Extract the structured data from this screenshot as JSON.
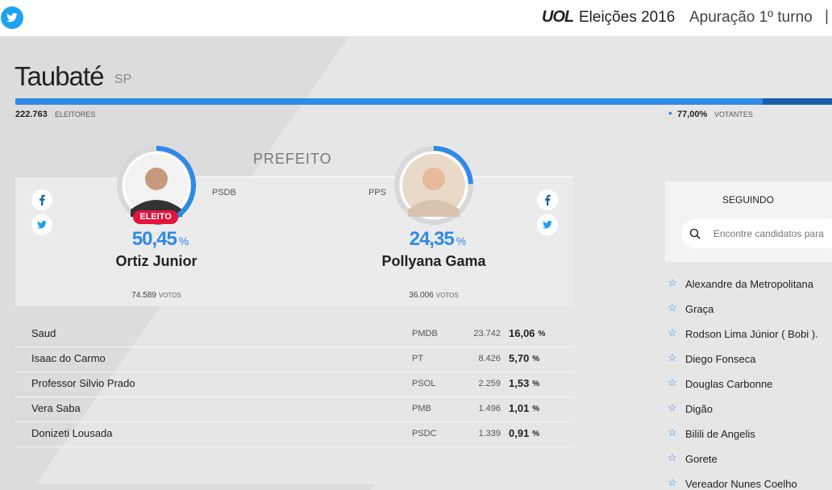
{
  "header": {
    "brand": "UOL",
    "title": "Eleições 2016",
    "subtitle": "Apuração 1º turno",
    "separator": "|"
  },
  "city": {
    "name": "Taubaté",
    "state": "SP",
    "electors": "222.763",
    "electors_label": "ELEITORES",
    "turnout": {
      "value": 77.0,
      "label": "77,00%"
    },
    "turnout_label": "VOTANTES"
  },
  "race": {
    "office": "PREFEITO",
    "unit": "%",
    "votes_label": "VOTOS",
    "elected_badge": "ELEITO",
    "leaders": [
      {
        "name": "Ortiz Junior",
        "party": "PSDB",
        "share": {
          "value": 50.45,
          "label": "50,45"
        },
        "votes": "74.589",
        "elected": true
      },
      {
        "name": "Pollyana Gama",
        "party": "PPS",
        "share": {
          "value": 24.35,
          "label": "24,35"
        },
        "votes": "36.006",
        "elected": false
      }
    ],
    "others": [
      {
        "name": "Saud",
        "party": "PMDB",
        "votes": "23.742",
        "share": "16,06"
      },
      {
        "name": "Isaac do Carmo",
        "party": "PT",
        "votes": "8.426",
        "share": "5,70"
      },
      {
        "name": "Professor Silvio Prado",
        "party": "PSOL",
        "votes": "2.259",
        "share": "1,53"
      },
      {
        "name": "Vera Saba",
        "party": "PMB",
        "votes": "1.496",
        "share": "1,01"
      },
      {
        "name": "Donizeti Lousada",
        "party": "PSDC",
        "votes": "1.339",
        "share": "0,91"
      }
    ]
  },
  "sidebar": {
    "title": "SEGUINDO",
    "search_placeholder": "Encontre candidatos para",
    "candidates": [
      "Alexandre da Metropolitana",
      "Graça",
      "Rodson Lima Júnior ( Bobi ).",
      "Diego Fonseca",
      "Douglas Carbonne",
      "Digão",
      "Bilili de Angelis",
      "Gorete",
      "Vereador Nunes Coelho"
    ]
  }
}
